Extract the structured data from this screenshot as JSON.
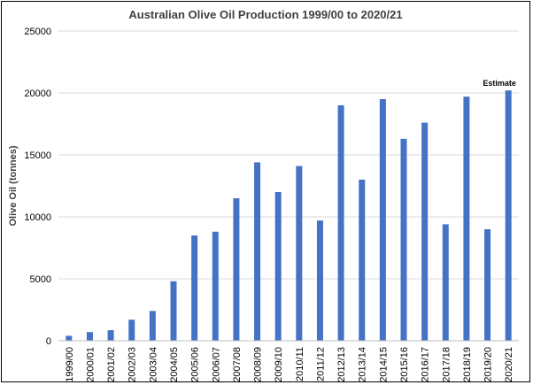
{
  "chart_data": {
    "type": "bar",
    "title": "Australian Olive Oil Production 1999/00  to 2020/21",
    "xlabel": "",
    "ylabel": "Olive Oil (tonnes)",
    "ylim": [
      0,
      25000
    ],
    "yticks": [
      0,
      5000,
      10000,
      15000,
      20000,
      25000
    ],
    "grid": true,
    "legend": "none",
    "categories": [
      "1999/00",
      "2000/01",
      "2001/02",
      "2002/03",
      "2003/04",
      "2004/05",
      "2005/06",
      "2006/07",
      "2007/08",
      "2008/09",
      "2009/10",
      "2010/11",
      "2011/12",
      "2012/13",
      "2013/14",
      "2014/15",
      "2015/16",
      "2016/17",
      "2017/18",
      "2018/19",
      "2019/20",
      "2020/21"
    ],
    "values": [
      400,
      700,
      850,
      1700,
      2400,
      4800,
      8500,
      8800,
      11500,
      14400,
      12000,
      14100,
      9700,
      19000,
      13000,
      19500,
      16300,
      17600,
      9400,
      19700,
      9000,
      20200
    ],
    "annotation": {
      "category": "2020/21",
      "text": "Estimate"
    },
    "bar_color": "#4472c4"
  }
}
